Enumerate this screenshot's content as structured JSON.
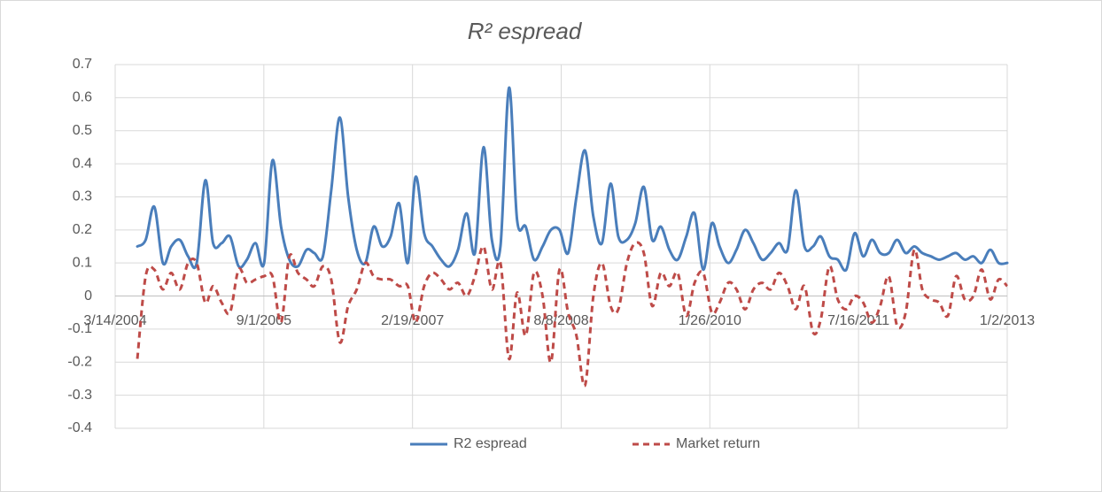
{
  "chart_data": {
    "type": "line",
    "title": "R² espread",
    "x": [
      "6/2/2004",
      "7/2/2004",
      "8/2/2004",
      "9/2/2004",
      "10/2/2004",
      "11/2/2004",
      "12/2/2004",
      "1/2/2005",
      "2/2/2005",
      "3/2/2005",
      "4/2/2005",
      "5/2/2005",
      "6/2/2005",
      "7/2/2005",
      "8/2/2005",
      "9/2/2005",
      "10/2/2005",
      "11/2/2005",
      "12/2/2005",
      "1/2/2006",
      "2/2/2006",
      "3/2/2006",
      "4/2/2006",
      "5/2/2006",
      "6/2/2006",
      "7/2/2006",
      "8/2/2006",
      "9/2/2006",
      "10/2/2006",
      "11/2/2006",
      "12/2/2006",
      "1/2/2007",
      "2/2/2007",
      "3/2/2007",
      "4/2/2007",
      "5/2/2007",
      "6/2/2007",
      "7/2/2007",
      "8/2/2007",
      "9/2/2007",
      "10/2/2007",
      "11/2/2007",
      "12/2/2007",
      "1/2/2008",
      "2/2/2008",
      "3/2/2008",
      "4/2/2008",
      "5/2/2008",
      "6/2/2008",
      "7/2/2008",
      "8/2/2008",
      "9/2/2008",
      "10/2/2008",
      "11/2/2008",
      "12/2/2008",
      "1/2/2009",
      "2/2/2009",
      "3/2/2009",
      "4/2/2009",
      "5/2/2009",
      "6/2/2009",
      "7/2/2009",
      "8/2/2009",
      "9/2/2009",
      "10/2/2009",
      "11/2/2009",
      "12/2/2009",
      "1/2/2010",
      "2/2/2010",
      "3/2/2010",
      "4/2/2010",
      "5/2/2010",
      "6/2/2010",
      "7/2/2010",
      "8/2/2010",
      "9/2/2010",
      "10/2/2010",
      "11/2/2010",
      "12/2/2010",
      "1/2/2011",
      "2/2/2011",
      "3/2/2011",
      "4/2/2011",
      "5/2/2011",
      "6/2/2011",
      "7/2/2011",
      "8/2/2011",
      "9/2/2011",
      "10/2/2011",
      "11/2/2011",
      "12/2/2011",
      "1/2/2012",
      "2/2/2012",
      "3/2/2012",
      "4/2/2012",
      "5/2/2012",
      "6/2/2012",
      "7/2/2012",
      "8/2/2012",
      "9/2/2012",
      "10/2/2012",
      "11/2/2012",
      "12/2/2012",
      "1/2/2013"
    ],
    "series": [
      {
        "name": "R2 espread",
        "color": "#4a7ebb",
        "line_style": "solid",
        "values": [
          0.15,
          0.17,
          0.27,
          0.1,
          0.15,
          0.17,
          0.12,
          0.1,
          0.35,
          0.16,
          0.16,
          0.18,
          0.09,
          0.11,
          0.16,
          0.1,
          0.41,
          0.21,
          0.11,
          0.09,
          0.14,
          0.13,
          0.12,
          0.32,
          0.54,
          0.3,
          0.14,
          0.1,
          0.21,
          0.15,
          0.18,
          0.28,
          0.1,
          0.36,
          0.19,
          0.15,
          0.11,
          0.09,
          0.14,
          0.25,
          0.13,
          0.45,
          0.17,
          0.15,
          0.63,
          0.23,
          0.21,
          0.11,
          0.15,
          0.2,
          0.2,
          0.13,
          0.3,
          0.44,
          0.24,
          0.16,
          0.34,
          0.18,
          0.17,
          0.22,
          0.33,
          0.17,
          0.21,
          0.14,
          0.11,
          0.18,
          0.25,
          0.08,
          0.22,
          0.15,
          0.1,
          0.14,
          0.2,
          0.16,
          0.11,
          0.13,
          0.16,
          0.14,
          0.32,
          0.15,
          0.15,
          0.18,
          0.12,
          0.11,
          0.08,
          0.19,
          0.12,
          0.17,
          0.13,
          0.13,
          0.17,
          0.13,
          0.15,
          0.13,
          0.12,
          0.11,
          0.12,
          0.13,
          0.11,
          0.12,
          0.1,
          0.14,
          0.1,
          0.1
        ]
      },
      {
        "name": "Market return",
        "color": "#be4b48",
        "line_style": "dashed",
        "values": [
          -0.19,
          0.06,
          0.08,
          0.02,
          0.07,
          0.02,
          0.1,
          0.1,
          -0.02,
          0.03,
          -0.02,
          -0.05,
          0.08,
          0.04,
          0.05,
          0.06,
          0.06,
          -0.08,
          0.12,
          0.07,
          0.05,
          0.03,
          0.09,
          0.05,
          -0.14,
          -0.03,
          0.02,
          0.1,
          0.06,
          0.05,
          0.05,
          0.03,
          0.03,
          -0.08,
          0.03,
          0.07,
          0.05,
          0.02,
          0.04,
          0.0,
          0.06,
          0.15,
          0.02,
          0.1,
          -0.19,
          0.01,
          -0.12,
          0.07,
          0.0,
          -0.2,
          0.08,
          -0.05,
          -0.12,
          -0.27,
          0.0,
          0.1,
          -0.03,
          -0.04,
          0.1,
          0.16,
          0.13,
          -0.03,
          0.07,
          0.03,
          0.07,
          -0.06,
          0.04,
          0.07,
          -0.05,
          -0.02,
          0.04,
          0.02,
          -0.04,
          0.02,
          0.04,
          0.02,
          0.07,
          0.03,
          -0.04,
          0.03,
          -0.11,
          -0.07,
          0.09,
          -0.01,
          -0.04,
          0.0,
          -0.02,
          -0.08,
          -0.03,
          0.06,
          -0.09,
          -0.05,
          0.14,
          0.02,
          -0.01,
          -0.02,
          -0.06,
          0.06,
          -0.01,
          0.0,
          0.08,
          -0.01,
          0.05,
          0.03
        ]
      }
    ],
    "xlim": [
      "3/14/2004",
      "1/2/2013"
    ],
    "xticks": [
      "3/14/2004",
      "9/1/2005",
      "2/19/2007",
      "8/8/2008",
      "1/26/2010",
      "7/16/2011",
      "1/2/2013"
    ],
    "ylim": [
      -0.4,
      0.7
    ],
    "yticks": [
      -0.4,
      -0.3,
      -0.2,
      -0.1,
      0,
      0.1,
      0.2,
      0.3,
      0.4,
      0.5,
      0.6,
      0.7
    ],
    "grid": true,
    "legend": "bottom"
  }
}
